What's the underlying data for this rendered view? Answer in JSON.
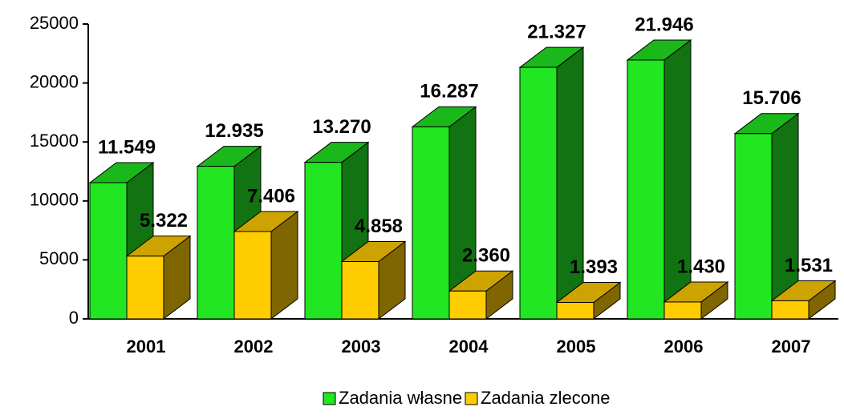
{
  "chart_data": {
    "type": "bar3d",
    "categories": [
      "2001",
      "2002",
      "2003",
      "2004",
      "2005",
      "2006",
      "2007"
    ],
    "series": [
      {
        "name": "Zadania własne",
        "color": "#22e622",
        "values": [
          11549,
          12935,
          13270,
          16287,
          21327,
          21946,
          15706
        ],
        "value_labels": [
          "11.549",
          "12.935",
          "13.270",
          "16.287",
          "21.327",
          "21.946",
          "15.706"
        ]
      },
      {
        "name": "Zadania zlecone",
        "color": "#ffcc00",
        "values": [
          5322,
          7406,
          4858,
          2360,
          1393,
          1430,
          1531
        ],
        "value_labels": [
          "5.322",
          "7.406",
          "4.858",
          "2.360",
          "1.393",
          "1.430",
          "1.531"
        ]
      }
    ],
    "ylim": [
      0,
      25000
    ],
    "yticks": [
      0,
      5000,
      10000,
      15000,
      20000,
      25000
    ],
    "legend": "bottom"
  }
}
